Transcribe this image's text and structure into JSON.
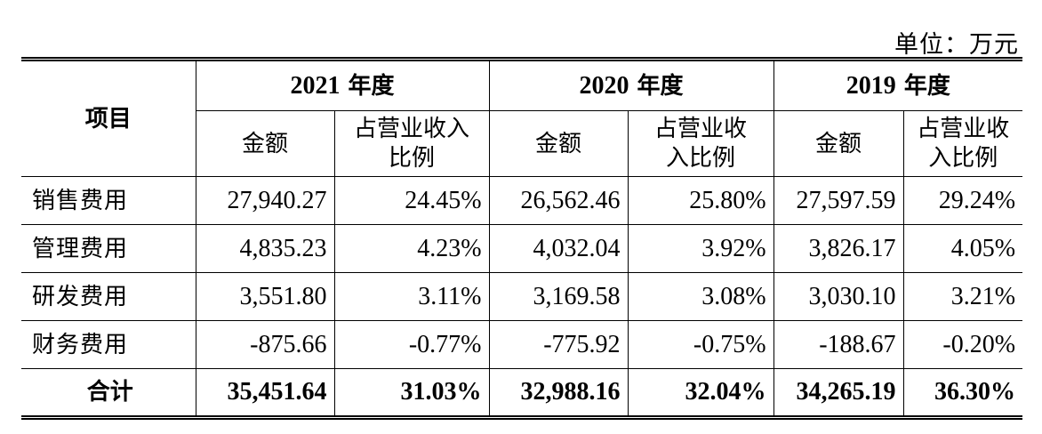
{
  "unit_label": "单位：万元",
  "header": {
    "item": "项目",
    "years": [
      {
        "year": "2021",
        "suffix": "年度",
        "amount": "金额",
        "ratio_line1": "占营业收入",
        "ratio_line2": "比例"
      },
      {
        "year": "2020",
        "suffix": "年度",
        "amount": "金额",
        "ratio_line1": "占营业收",
        "ratio_line2": "入比例"
      },
      {
        "year": "2019",
        "suffix": "年度",
        "amount": "金额",
        "ratio_line1": "占营业收",
        "ratio_line2": "入比例"
      }
    ]
  },
  "rows": [
    {
      "label": "销售费用",
      "v": [
        "27,940.27",
        "24.45%",
        "26,562.46",
        "25.80%",
        "27,597.59",
        "29.24%"
      ]
    },
    {
      "label": "管理费用",
      "v": [
        "4,835.23",
        "4.23%",
        "4,032.04",
        "3.92%",
        "3,826.17",
        "4.05%"
      ]
    },
    {
      "label": "研发费用",
      "v": [
        "3,551.80",
        "3.11%",
        "3,169.58",
        "3.08%",
        "3,030.10",
        "3.21%"
      ]
    },
    {
      "label": "财务费用",
      "v": [
        "-875.66",
        "-0.77%",
        "-775.92",
        "-0.75%",
        "-188.67",
        "-0.20%"
      ]
    }
  ],
  "total": {
    "label": "合计",
    "v": [
      "35,451.64",
      "31.03%",
      "32,988.16",
      "32.04%",
      "34,265.19",
      "36.30%"
    ]
  }
}
